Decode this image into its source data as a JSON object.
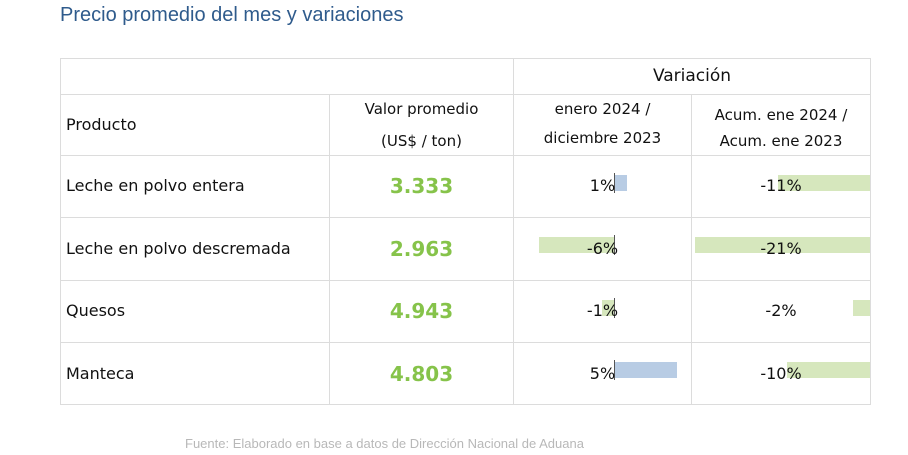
{
  "title": "Precio promedio del mes y variaciones",
  "table": {
    "group_header": "Variación",
    "col_product": "Producto",
    "col_value_line1": "Valor promedio",
    "col_value_line2": "(US$ / ton)",
    "col_var1_line1": "enero 2024 /",
    "col_var1_line2": "diciembre 2023",
    "col_var2_line1": "Acum. ene 2024 /",
    "col_var2_line2": "Acum. ene 2023",
    "rows": [
      {
        "product": "Leche en polvo entera",
        "value": "3.333",
        "var_month": "1%",
        "var_month_num": 1,
        "var_acum": "-11%",
        "var_acum_num": -11
      },
      {
        "product": "Leche en polvo descremada",
        "value": "2.963",
        "var_month": "-6%",
        "var_month_num": -6,
        "var_acum": "-21%",
        "var_acum_num": -21
      },
      {
        "product": "Quesos",
        "value": "4.943",
        "var_month": "-1%",
        "var_month_num": -1,
        "var_acum": "-2%",
        "var_acum_num": -2
      },
      {
        "product": "Manteca",
        "value": "4.803",
        "var_month": "5%",
        "var_month_num": 5,
        "var_acum": "-10%",
        "var_acum_num": -10
      }
    ]
  },
  "colors": {
    "positive_bar": "#b8cce4",
    "negative_bar": "#d6e7bd",
    "value_text": "#86c34a",
    "title_text": "#2f5b8c"
  },
  "source": "Fuente: Elaborado en base a datos de Dirección Nacional de Aduana"
}
